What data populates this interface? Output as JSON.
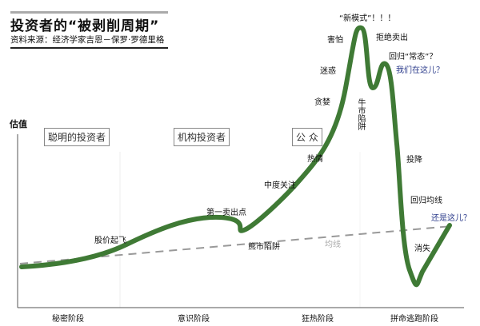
{
  "title": "投资者的“被剥削周期”",
  "source": "资料来源：经济学家吉恩－保罗·罗德里格",
  "y_axis_label": "估值",
  "participants": [
    "聪明的投资者",
    "机构投资者",
    "公 众"
  ],
  "phases": [
    "秘密阶段",
    "意识阶段",
    "狂热阶段",
    "拼命逃跑阶段"
  ],
  "annotations": {
    "takeoff": "股价起飞",
    "first_sell": "第一卖出点",
    "bear_trap": "熊市陷阱",
    "media": "中度关注",
    "enthusiasm": "热情",
    "greed": "贪婪",
    "delusion": "迷惑",
    "fear_top": "害怕",
    "new_paradigm": "“新模式”！！！",
    "denial": "拒绝卖出",
    "bull_trap": "牛市陷阱",
    "normal": "回归“常态”？",
    "we_here": "我们在这儿？",
    "capitulation": "投降",
    "return_mean": "回归均线",
    "despair": "消失",
    "or_here": "还是这儿？",
    "mean_line": "均线"
  },
  "colors": {
    "curve": "#3f7a35",
    "mean": "#999999",
    "note": "#2a3a8a"
  }
}
